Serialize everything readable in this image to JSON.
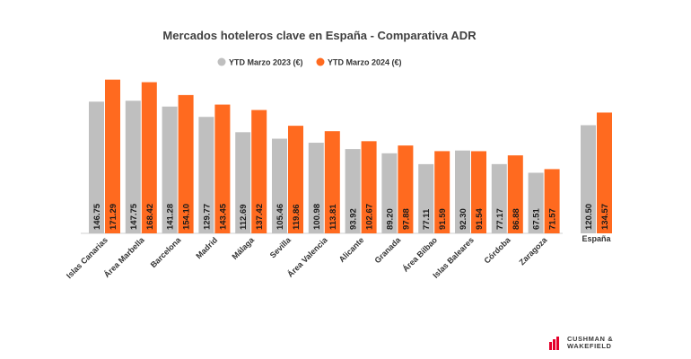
{
  "chart_data": {
    "type": "bar",
    "title": "Mercados hoteleros clave en España - Comparativa ADR",
    "categories": [
      "Islas Canarias",
      "Área Marbella",
      "Barcelona",
      "Madrid",
      "Málaga",
      "Sevilla",
      "Área Valencia",
      "Alicante",
      "Granada",
      "Área Bilbao",
      "Islas Baleares",
      "Córdoba",
      "Zaragoza",
      "España"
    ],
    "series": [
      {
        "name": "YTD Marzo 2023 (€)",
        "color": "#bfbfbf",
        "values": [
          146.75,
          147.75,
          141.28,
          129.77,
          112.69,
          105.46,
          100.98,
          93.92,
          89.2,
          77.11,
          92.3,
          77.17,
          67.51,
          120.5
        ],
        "labels": [
          "146.75",
          "147.75",
          "141.28",
          "129.77",
          "112.69",
          "105.46",
          "100.98",
          "93.92",
          "89.20",
          "77.11",
          "92.30",
          "77.17",
          "67.51",
          "120.50"
        ]
      },
      {
        "name": "YTD Marzo 2024 (€)",
        "color": "#ff6a1f",
        "values": [
          171.29,
          168.42,
          154.1,
          143.45,
          137.42,
          119.86,
          113.81,
          102.67,
          97.88,
          91.59,
          91.54,
          86.88,
          71.57,
          134.57
        ],
        "labels": [
          "171.29",
          "168.42",
          "154.10",
          "143.45",
          "137.42",
          "119.86",
          "113.81",
          "102.67",
          "97.88",
          "91.59",
          "91.54",
          "86.88",
          "71.57",
          "134.57"
        ]
      }
    ],
    "legend_position": "top-center",
    "grid": false,
    "ylim": [
      0,
      182
    ]
  },
  "brand": {
    "line1": "CUSHMAN &",
    "line2": "WAKEFIELD",
    "color": "#e4002b"
  }
}
